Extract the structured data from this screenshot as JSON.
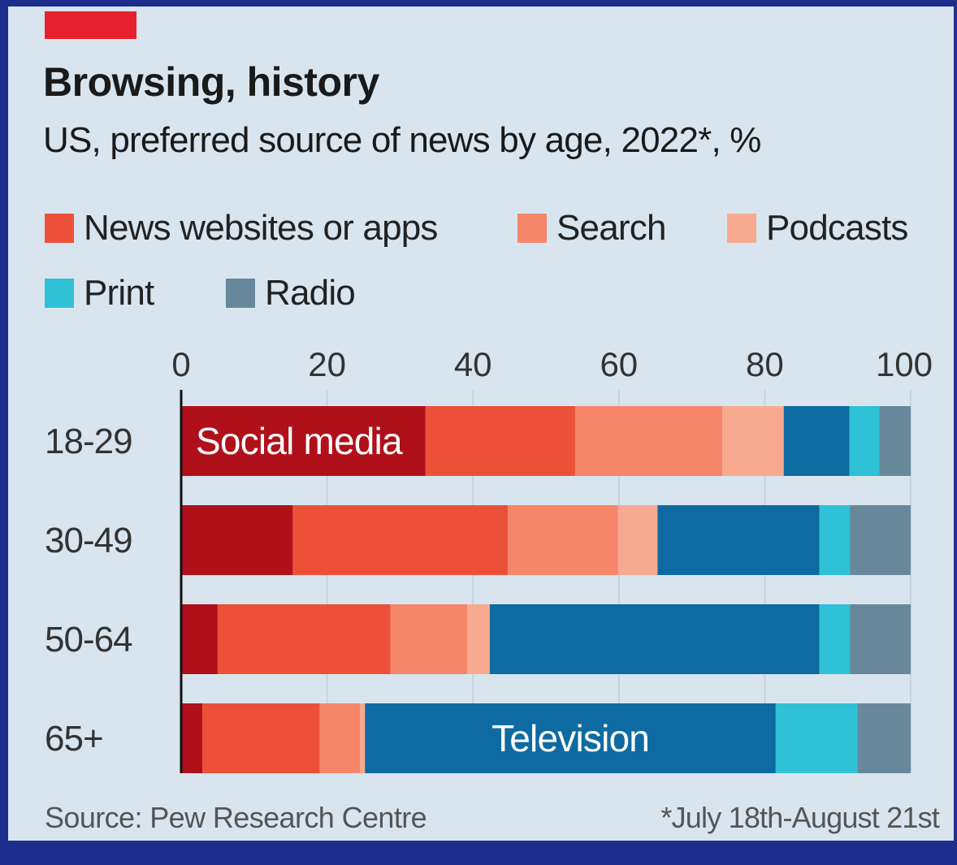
{
  "header": {
    "title": "Browsing, history",
    "subtitle": "US, preferred source of news by age, 2022*, %"
  },
  "legend": [
    {
      "label": "News websites or apps",
      "color": "#ec5138"
    },
    {
      "label": "Search",
      "color": "#f5866a"
    },
    {
      "label": "Podcasts",
      "color": "#f7aa8f"
    },
    {
      "label": "Print",
      "color": "#2fc1d6"
    },
    {
      "label": "Radio",
      "color": "#67889b"
    }
  ],
  "footer": {
    "source": "Source: Pew Research Centre",
    "note": "*July 18th-August 21st"
  },
  "chart_data": {
    "type": "bar",
    "orientation": "horizontal",
    "stacked": true,
    "xlim": [
      0,
      100
    ],
    "xticks": [
      "0",
      "20",
      "40",
      "60",
      "80",
      "100"
    ],
    "grid": true,
    "categories": [
      "18-29",
      "30-49",
      "50-64",
      "65+"
    ],
    "series": [
      {
        "name": "Social media",
        "color": "#b0101a",
        "values": [
          33.5,
          15.3,
          5.0,
          2.9
        ]
      },
      {
        "name": "News websites or apps",
        "color": "#ec5138",
        "values": [
          20.5,
          29.5,
          23.7,
          16.1
        ]
      },
      {
        "name": "Search",
        "color": "#f5866a",
        "values": [
          20.2,
          15.1,
          10.5,
          5.5
        ]
      },
      {
        "name": "Podcasts",
        "color": "#f7aa8f",
        "values": [
          8.4,
          5.4,
          3.1,
          0.7
        ]
      },
      {
        "name": "Television",
        "color": "#0e6ba1",
        "values": [
          9.0,
          22.2,
          45.2,
          56.3
        ]
      },
      {
        "name": "Print",
        "color": "#2fc1d6",
        "values": [
          4.1,
          4.2,
          4.2,
          11.2
        ]
      },
      {
        "name": "Radio",
        "color": "#67889b",
        "values": [
          4.3,
          8.3,
          8.3,
          7.3
        ]
      }
    ],
    "annotations": [
      {
        "text": "Social media",
        "category": "18-29",
        "series": "Social media"
      },
      {
        "text": "Television",
        "category": "65+",
        "series": "Television"
      }
    ]
  }
}
